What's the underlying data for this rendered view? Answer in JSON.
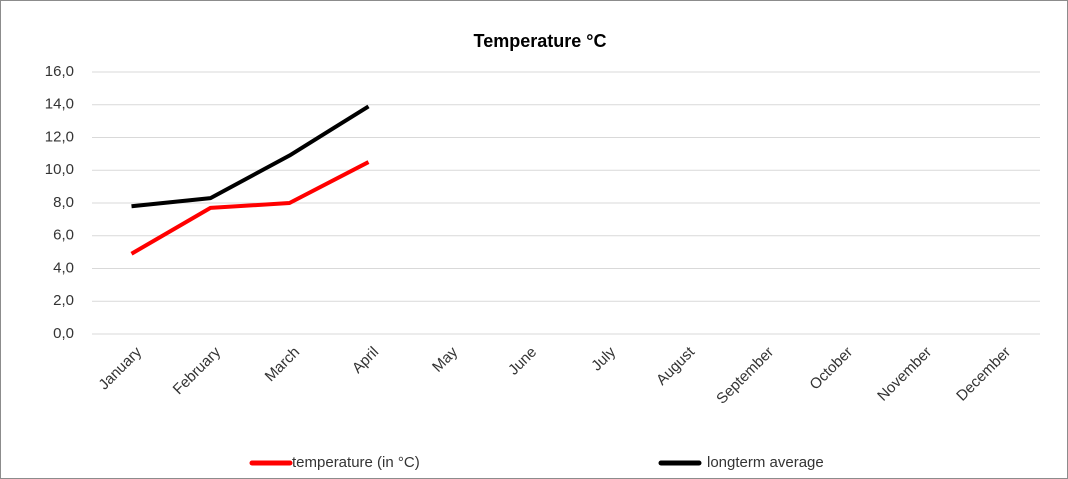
{
  "chart_data": {
    "type": "line",
    "title": "Temperature °C",
    "categories": [
      "January",
      "February",
      "March",
      "April",
      "May",
      "June",
      "July",
      "August",
      "September",
      "October",
      "November",
      "December"
    ],
    "series": [
      {
        "name": "temperature (in °C)",
        "color": "#ff0000",
        "values": [
          4.9,
          7.7,
          8.0,
          10.5,
          null,
          null,
          null,
          null,
          null,
          null,
          null,
          null
        ]
      },
      {
        "name": "longterm average",
        "color": "#000000",
        "values": [
          7.8,
          8.3,
          10.9,
          13.9,
          null,
          null,
          null,
          null,
          null,
          null,
          null,
          null
        ]
      }
    ],
    "ylim": [
      0,
      16
    ],
    "yticks": [
      {
        "value": 0,
        "label": "0,0"
      },
      {
        "value": 2,
        "label": "2,0"
      },
      {
        "value": 4,
        "label": "4,0"
      },
      {
        "value": 6,
        "label": "6,0"
      },
      {
        "value": 8,
        "label": "8,0"
      },
      {
        "value": 10,
        "label": "10,0"
      },
      {
        "value": 12,
        "label": "12,0"
      },
      {
        "value": 14,
        "label": "14,0"
      },
      {
        "value": 16,
        "label": "16,0"
      }
    ],
    "grid": true,
    "legend": "bottom"
  }
}
